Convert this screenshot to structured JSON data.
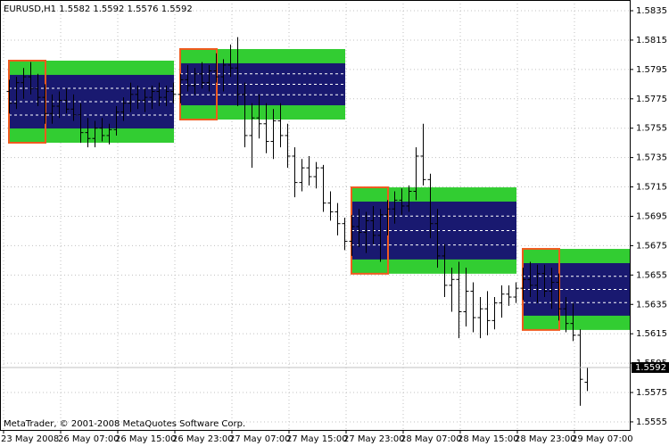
{
  "chart_data": {
    "type": "ohlc",
    "title": "EURUSD,H1  1.5582 1.5592 1.5576 1.5592",
    "footer": "MetaTrader, © 2001-2008 MetaQuotes Software Corp.",
    "ylim": [
      1.55495,
      1.58423
    ],
    "yticks": [
      1.5835,
      1.5815,
      1.5795,
      1.5775,
      1.5755,
      1.5735,
      1.5715,
      1.5695,
      1.5675,
      1.5655,
      1.5635,
      1.5615,
      1.5595,
      1.5575,
      1.5555
    ],
    "xticks": [
      {
        "value": 0,
        "label": "23 May 2008"
      },
      {
        "value": 8,
        "label": "26 May 07:00"
      },
      {
        "value": 16,
        "label": "26 May 15:00"
      },
      {
        "value": 24,
        "label": "26 May 23:00"
      },
      {
        "value": 32,
        "label": "27 May 07:00"
      },
      {
        "value": 40,
        "label": "27 May 15:00"
      },
      {
        "value": 48,
        "label": "27 May 23:00"
      },
      {
        "value": 56,
        "label": "28 May 07:00"
      },
      {
        "value": 64,
        "label": "28 May 15:00"
      },
      {
        "value": 72,
        "label": "28 May 23:00"
      },
      {
        "value": 80,
        "label": "29 May 07:00"
      }
    ],
    "grid": true,
    "current_price": 1.5592,
    "bar_color": "#000000",
    "zone_colors": {
      "outer": "#32cd32",
      "inner": "#191970",
      "box": "#f05a1e"
    },
    "zones": [
      {
        "start": 0,
        "end": 23,
        "box_end": 5,
        "levels": [
          1.5801,
          1.57913,
          1.57548,
          1.57451
        ]
      },
      {
        "start": 24,
        "end": 47,
        "box_end": 29,
        "levels": [
          1.58089,
          1.57992,
          1.57706,
          1.57609
        ]
      },
      {
        "start": 48,
        "end": 71,
        "box_end": 53,
        "levels": [
          1.57147,
          1.5705,
          1.56656,
          1.56559
        ]
      },
      {
        "start": 72,
        "end": 87,
        "box_end": 77,
        "levels": [
          1.56728,
          1.56631,
          1.56273,
          1.56176
        ]
      }
    ],
    "ohlc": [
      [
        1.578,
        1.5788,
        1.5765,
        1.5772
      ],
      [
        1.5772,
        1.579,
        1.5768,
        1.5786
      ],
      [
        1.5786,
        1.5796,
        1.5775,
        1.579
      ],
      [
        1.579,
        1.58,
        1.5778,
        1.5782
      ],
      [
        1.5782,
        1.5792,
        1.577,
        1.5776
      ],
      [
        1.5776,
        1.5785,
        1.5758,
        1.5765
      ],
      [
        1.5765,
        1.5778,
        1.5758,
        1.577
      ],
      [
        1.577,
        1.578,
        1.5762,
        1.5774
      ],
      [
        1.5774,
        1.5782,
        1.5765,
        1.5768
      ],
      [
        1.5768,
        1.5778,
        1.576,
        1.5764
      ],
      [
        1.5764,
        1.5772,
        1.5745,
        1.5752
      ],
      [
        1.5752,
        1.5762,
        1.5742,
        1.5748
      ],
      [
        1.5748,
        1.576,
        1.5742,
        1.5755
      ],
      [
        1.5755,
        1.5762,
        1.5746,
        1.575
      ],
      [
        1.575,
        1.5758,
        1.5744,
        1.5754
      ],
      [
        1.5754,
        1.577,
        1.575,
        1.5766
      ],
      [
        1.5766,
        1.5776,
        1.576,
        1.5772
      ],
      [
        1.5772,
        1.5786,
        1.5766,
        1.5778
      ],
      [
        1.5778,
        1.5784,
        1.5768,
        1.5774
      ],
      [
        1.5774,
        1.5782,
        1.5766,
        1.5776
      ],
      [
        1.5776,
        1.5784,
        1.5768,
        1.578
      ],
      [
        1.578,
        1.5786,
        1.577,
        1.5776
      ],
      [
        1.5776,
        1.5784,
        1.577,
        1.578
      ],
      [
        1.578,
        1.5786,
        1.5772,
        1.5778
      ],
      [
        1.5778,
        1.5792,
        1.5772,
        1.5788
      ],
      [
        1.5788,
        1.5798,
        1.578,
        1.5784
      ],
      [
        1.5784,
        1.5796,
        1.5778,
        1.5792
      ],
      [
        1.5792,
        1.58,
        1.5782,
        1.5786
      ],
      [
        1.5786,
        1.5798,
        1.578,
        1.5794
      ],
      [
        1.5794,
        1.5806,
        1.5786,
        1.579
      ],
      [
        1.579,
        1.5802,
        1.578,
        1.5798
      ],
      [
        1.5798,
        1.5812,
        1.579,
        1.5796
      ],
      [
        1.5796,
        1.5817,
        1.577,
        1.5778
      ],
      [
        1.5778,
        1.5786,
        1.5742,
        1.575
      ],
      [
        1.575,
        1.5772,
        1.5728,
        1.5762
      ],
      [
        1.5762,
        1.5778,
        1.5748,
        1.5758
      ],
      [
        1.5758,
        1.5772,
        1.5738,
        1.5746
      ],
      [
        1.5746,
        1.5768,
        1.5734,
        1.576
      ],
      [
        1.576,
        1.5772,
        1.5742,
        1.575
      ],
      [
        1.575,
        1.5758,
        1.5728,
        1.5736
      ],
      [
        1.5736,
        1.5742,
        1.5708,
        1.5718
      ],
      [
        1.5718,
        1.5734,
        1.5712,
        1.5728
      ],
      [
        1.5728,
        1.5736,
        1.5716,
        1.5722
      ],
      [
        1.5722,
        1.5732,
        1.5714,
        1.5728
      ],
      [
        1.5728,
        1.573,
        1.5698,
        1.5704
      ],
      [
        1.5704,
        1.5712,
        1.5692,
        1.5698
      ],
      [
        1.5698,
        1.5704,
        1.5682,
        1.569
      ],
      [
        1.569,
        1.5694,
        1.5672,
        1.5678
      ],
      [
        1.5678,
        1.5696,
        1.5668,
        1.5688
      ],
      [
        1.5688,
        1.57,
        1.5674,
        1.5684
      ],
      [
        1.5684,
        1.5698,
        1.567,
        1.5692
      ],
      [
        1.5692,
        1.5702,
        1.5676,
        1.5682
      ],
      [
        1.5682,
        1.57,
        1.5664,
        1.5696
      ],
      [
        1.5696,
        1.5706,
        1.5682,
        1.57
      ],
      [
        1.57,
        1.5712,
        1.569,
        1.5706
      ],
      [
        1.5706,
        1.5714,
        1.5696,
        1.5702
      ],
      [
        1.5702,
        1.5716,
        1.5698,
        1.5712
      ],
      [
        1.5712,
        1.5742,
        1.5706,
        1.5736
      ],
      [
        1.5736,
        1.5758,
        1.5716,
        1.572
      ],
      [
        1.572,
        1.5724,
        1.568,
        1.569
      ],
      [
        1.569,
        1.57,
        1.566,
        1.5668
      ],
      [
        1.5668,
        1.5676,
        1.564,
        1.5648
      ],
      [
        1.5648,
        1.566,
        1.563,
        1.5652
      ],
      [
        1.5652,
        1.5664,
        1.5612,
        1.563
      ],
      [
        1.563,
        1.566,
        1.562,
        1.5644
      ],
      [
        1.5644,
        1.565,
        1.5616,
        1.5626
      ],
      [
        1.5626,
        1.564,
        1.5612,
        1.5632
      ],
      [
        1.5632,
        1.5644,
        1.5614,
        1.5624
      ],
      [
        1.5624,
        1.564,
        1.5618,
        1.5636
      ],
      [
        1.5636,
        1.5648,
        1.5626,
        1.5642
      ],
      [
        1.5642,
        1.5648,
        1.5634,
        1.564
      ],
      [
        1.564,
        1.565,
        1.5636,
        1.5646
      ],
      [
        1.5646,
        1.566,
        1.5638,
        1.5652
      ],
      [
        1.5652,
        1.5664,
        1.564,
        1.5648
      ],
      [
        1.5648,
        1.5662,
        1.5636,
        1.5656
      ],
      [
        1.5656,
        1.5662,
        1.564,
        1.5644
      ],
      [
        1.5644,
        1.566,
        1.5632,
        1.565
      ],
      [
        1.565,
        1.5656,
        1.5624,
        1.5632
      ],
      [
        1.5632,
        1.564,
        1.5616,
        1.5622
      ],
      [
        1.5622,
        1.5636,
        1.561,
        1.5614
      ],
      [
        1.5614,
        1.5618,
        1.5566,
        1.5584
      ],
      [
        1.5582,
        1.5592,
        1.5576,
        1.5592
      ]
    ]
  }
}
